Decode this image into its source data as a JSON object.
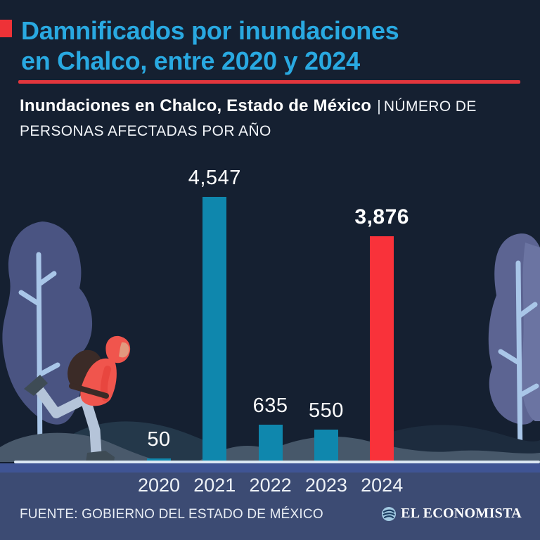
{
  "header": {
    "title_line1": "Damnificados por inundaciones",
    "title_line2": "en Chalco, entre 2020 y 2024",
    "subtitle_bold": "Inundaciones en Chalco, Estado de México",
    "subtitle_separator": "|",
    "subtitle_light_inline": "NÚMERO DE",
    "subtitle_light_line2": "PERSONAS AFECTADAS POR AÑO",
    "title_color": "#29a9e1",
    "rule_color": "#e2363d"
  },
  "chart_data": {
    "type": "bar",
    "categories": [
      "2020",
      "2021",
      "2022",
      "2023",
      "2024"
    ],
    "values": [
      50,
      4547,
      635,
      550,
      3876
    ],
    "value_labels": [
      "50",
      "4,547",
      "635",
      "550",
      "3,876"
    ],
    "bar_colors": [
      "#0f87ad",
      "#0f87ad",
      "#0f87ad",
      "#0f87ad",
      "#f9323a"
    ],
    "highlight_index": 4,
    "title": "Inundaciones en Chalco, Estado de México",
    "subtitle": "Número de personas afectadas por año",
    "xlabel": "",
    "ylabel": "",
    "ylim": [
      0,
      4547
    ],
    "grid": false,
    "legend": "none",
    "teal_color": "#0f87ad",
    "red_color": "#f9323a"
  },
  "footer": {
    "source": "FUENTE: GOBIERNO DEL ESTADO DE MÉXICO",
    "brand": "EL ECONOMISTA",
    "brand_icon": "el-economista-globe-icon"
  },
  "scene": {
    "figure": "person-walking-with-backpack",
    "elements": [
      "bare-tree-left",
      "bare-tree-right",
      "hills"
    ]
  }
}
